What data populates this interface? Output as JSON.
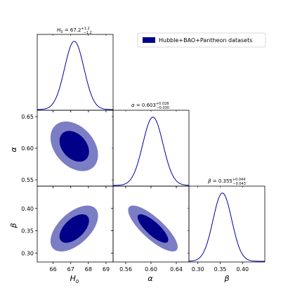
{
  "chart_data": {
    "type": "corner",
    "parameters": [
      {
        "key": "H0",
        "label": "H",
        "label_sub": "0",
        "tick_labels": [
          "66",
          "67",
          "68",
          "69"
        ],
        "range": [
          65.1,
          69.4
        ],
        "title_prefix": "H",
        "title_sub": "0",
        "title_value": " = 67.2",
        "title_sup": "+1.2",
        "title_subscr": "−1.2",
        "mean": 67.2,
        "sigma": 0.55
      },
      {
        "key": "alpha",
        "label": "α",
        "tick_labels": [
          "0.56",
          "0.60",
          "0.64"
        ],
        "range": [
          0.54,
          0.66
        ],
        "title_prefix": "α",
        "title_value": " = 0.603",
        "title_sup": "+0.028",
        "title_subscr": "−0.030",
        "mean": 0.603,
        "sigma": 0.016
      },
      {
        "key": "beta",
        "label": "β",
        "tick_labels": [
          "0.30",
          "0.35",
          "0.40"
        ],
        "range": [
          0.28,
          0.45
        ],
        "title_prefix": "β",
        "title_value": " = 0.355",
        "title_sup": "+0.044",
        "title_subscr": "−0.043",
        "mean": 0.355,
        "sigma": 0.021
      }
    ],
    "left_tick_labels": {
      "alpha": [
        "0.55",
        "0.60",
        "0.65"
      ],
      "beta": [
        "0.30",
        "0.35",
        "0.40"
      ]
    },
    "correlations": {
      "H0_alpha": -0.35,
      "H0_beta": 0.55,
      "alpha_beta": -0.8
    },
    "legend": {
      "label": "Hubble+BAO+Pantheon datasets",
      "position": "top-right"
    },
    "colors": {
      "line": "#0000a0",
      "inner": "#000088",
      "outer": "#7b7ec4"
    }
  }
}
